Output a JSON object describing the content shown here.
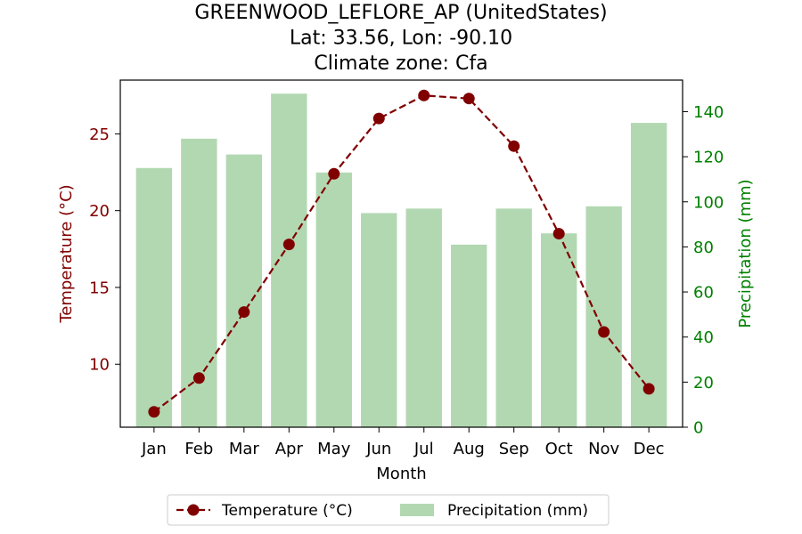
{
  "chart_data": {
    "type": "bar+line",
    "title_lines": [
      "GREENWOOD_LEFLORE_AP (UnitedStates)",
      "Lat: 33.56, Lon: -90.10",
      "Climate zone: Cfa"
    ],
    "xlabel": "Month",
    "ylabel_left": "Temperature (°C)",
    "ylabel_right": "Precipitation (mm)",
    "categories": [
      "Jan",
      "Feb",
      "Mar",
      "Apr",
      "May",
      "Jun",
      "Jul",
      "Aug",
      "Sep",
      "Oct",
      "Nov",
      "Dec"
    ],
    "series": [
      {
        "name": "Temperature (°C)",
        "kind": "line",
        "axis": "left",
        "color": "#800000",
        "values": [
          6.9,
          9.1,
          13.4,
          17.8,
          22.4,
          26.0,
          27.5,
          27.3,
          24.2,
          18.5,
          12.1,
          8.4
        ]
      },
      {
        "name": "Precipitation (mm)",
        "kind": "bar",
        "axis": "right",
        "color": "#b2d8b2",
        "values": [
          115,
          128,
          121,
          148,
          113,
          95,
          97,
          81,
          97,
          86,
          98,
          135
        ]
      }
    ],
    "ylim_left": [
      5.9,
      28.5
    ],
    "yticks_left": [
      10,
      15,
      20,
      25
    ],
    "ylim_right": [
      0,
      154
    ],
    "yticks_right": [
      0,
      20,
      40,
      60,
      80,
      100,
      120,
      140
    ],
    "left_axis_color": "#800000",
    "right_axis_color": "#008000",
    "legend_position": "bottom-center"
  }
}
